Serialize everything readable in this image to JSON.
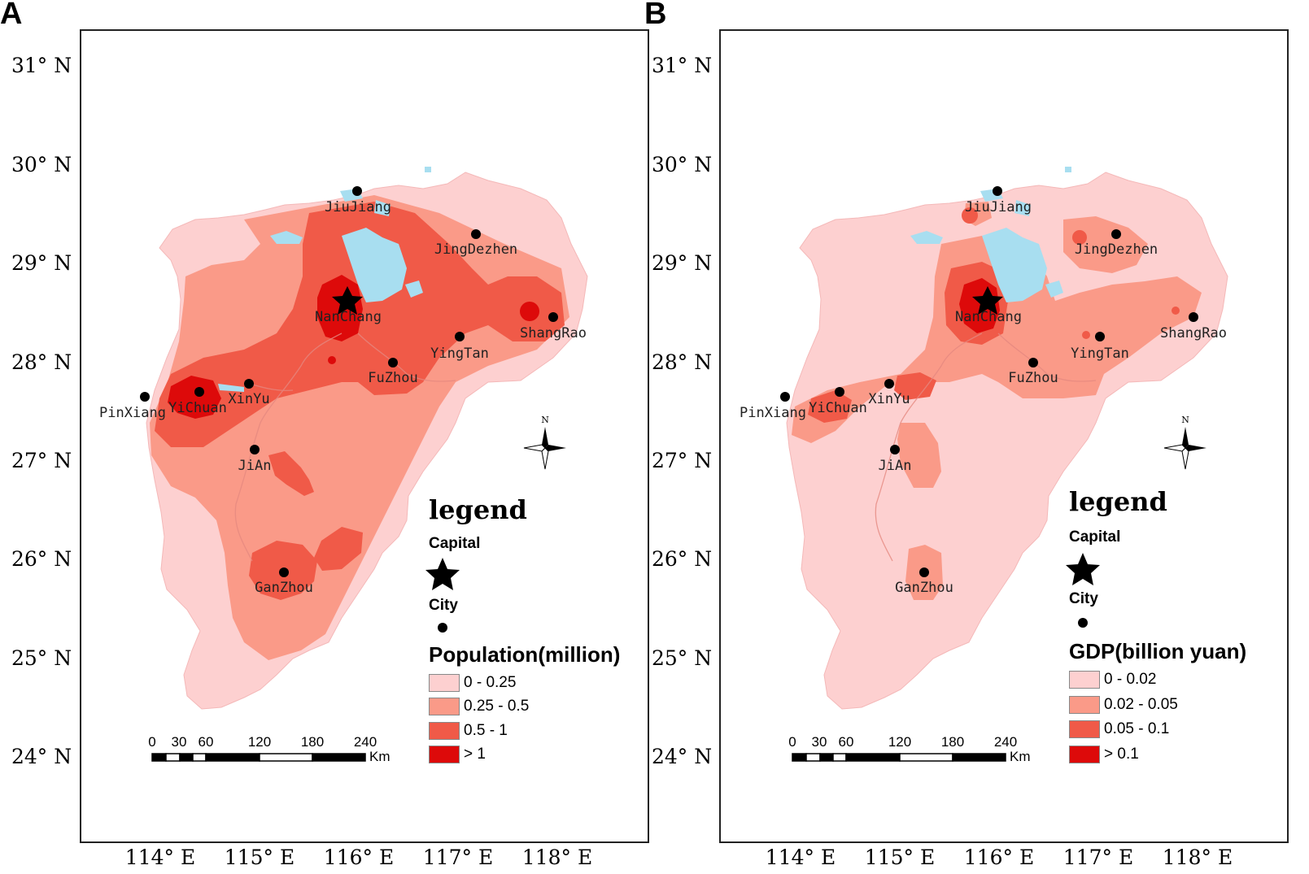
{
  "panels": [
    {
      "letter": "A",
      "legend_title": "legend",
      "capital_label": "Capital",
      "city_label": "City",
      "variable": "Population(million)",
      "classes": [
        {
          "label": "0 - 0.25",
          "color": "#fdd0d0"
        },
        {
          "label": "0.25 - 0.5",
          "color": "#fa9a88"
        },
        {
          "label": "0.5 - 1",
          "color": "#f05a48"
        },
        {
          "label": "> 1",
          "color": "#dd0a0a"
        }
      ]
    },
    {
      "letter": "B",
      "legend_title": "legend",
      "capital_label": "Capital",
      "city_label": "City",
      "variable": "GDP(billion yuan)",
      "classes": [
        {
          "label": "0 - 0.02",
          "color": "#fdd0d0"
        },
        {
          "label": "0.02 - 0.05",
          "color": "#fa9a88"
        },
        {
          "label": "0.05 - 0.1",
          "color": "#f05a48"
        },
        {
          "label": "> 0.1",
          "color": "#dd0a0a"
        }
      ]
    }
  ],
  "lat_labels": [
    "31° N",
    "30° N",
    "29° N",
    "28° N",
    "27° N",
    "26° N",
    "25° N",
    "24° N"
  ],
  "lon_labels": [
    "114° E",
    "115° E",
    "116° E",
    "117° E",
    "118° E"
  ],
  "cities": [
    "JiuJiang",
    "JingDezhen",
    "NanChang",
    "ShangRao",
    "YingTan",
    "FuZhou",
    "XinYu",
    "YiChuan",
    "PinXiang",
    "JiAn",
    "GanZhou"
  ],
  "scale_bar": {
    "ticks": [
      "0",
      "30",
      "60",
      "120",
      "180",
      "240"
    ],
    "unit": "Km"
  },
  "north_label": "N",
  "water_color": "#a8def0"
}
